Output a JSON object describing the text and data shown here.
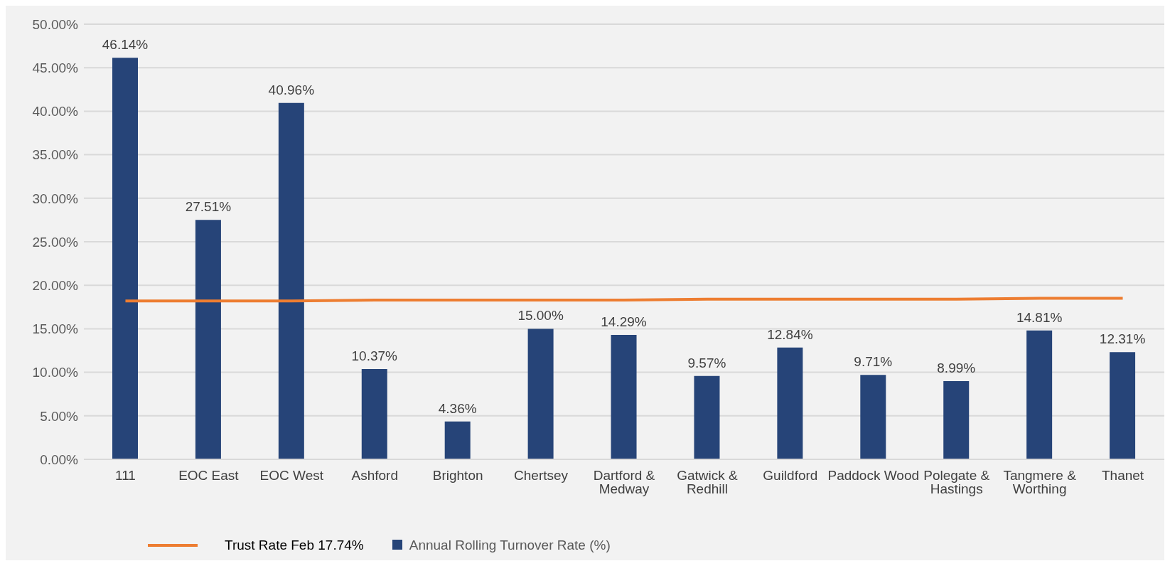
{
  "chart_data": {
    "type": "bar",
    "categories": [
      "111",
      "EOC East",
      "EOC West",
      "Ashford",
      "Brighton",
      "Chertsey",
      "Dartford & Medway",
      "Gatwick & Redhill",
      "Guildford",
      "Paddock Wood",
      "Polegate & Hastings",
      "Tangmere & Worthing",
      "Thanet"
    ],
    "series": [
      {
        "type": "line",
        "name": "Trust Rate Feb 17.74%",
        "color": "#ed7d31",
        "values": [
          18.2,
          18.2,
          18.2,
          18.3,
          18.3,
          18.3,
          18.3,
          18.4,
          18.4,
          18.4,
          18.4,
          18.5,
          18.5
        ],
        "marker": "none",
        "line_style": "solid"
      },
      {
        "name": "Annual Rolling Turnover Rate (%)",
        "color": "#264478",
        "values": [
          46.14,
          27.51,
          40.96,
          10.37,
          4.36,
          15.0,
          14.29,
          9.57,
          12.84,
          9.71,
          8.99,
          14.81,
          12.31
        ],
        "value_labels": [
          "46.14%",
          "27.51%",
          "40.96%",
          "10.37%",
          "4.36%",
          "15.00%",
          "14.29%",
          "9.57%",
          "12.84%",
          "9.71%",
          "8.99%",
          "14.81%",
          "12.31%"
        ]
      }
    ],
    "ylim": [
      0,
      50
    ],
    "yticks": [
      {
        "value": 0,
        "label": "0.00%"
      },
      {
        "value": 5,
        "label": "5.00%"
      },
      {
        "value": 10,
        "label": "10.00%"
      },
      {
        "value": 15,
        "label": "15.00%"
      },
      {
        "value": 20,
        "label": "20.00%"
      },
      {
        "value": 25,
        "label": "25.00%"
      },
      {
        "value": 30,
        "label": "30.00%"
      },
      {
        "value": 35,
        "label": "35.00%"
      },
      {
        "value": 40,
        "label": "40.00%"
      },
      {
        "value": 45,
        "label": "45.00%"
      },
      {
        "value": 50,
        "label": "50.00%"
      }
    ],
    "grid": "y",
    "legend": "bottom"
  }
}
